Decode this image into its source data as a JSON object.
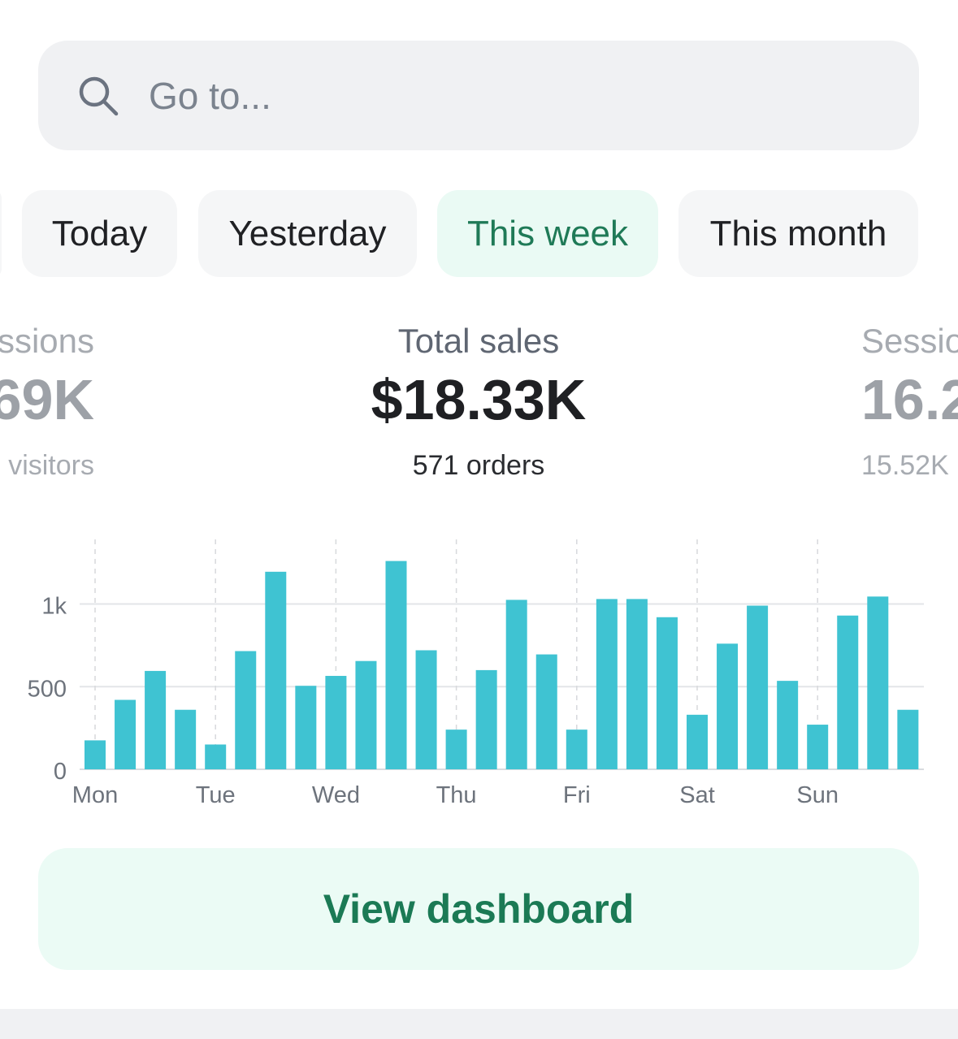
{
  "search": {
    "placeholder": "Go to...",
    "icon": "search-icon"
  },
  "range_tabs": [
    {
      "label": "Today",
      "active": false
    },
    {
      "label": "Yesterday",
      "active": false
    },
    {
      "label": "This week",
      "active": true
    },
    {
      "label": "This month",
      "active": false
    }
  ],
  "metrics": {
    "left": {
      "label": "ssions",
      "value": "69K",
      "sub": "visitors"
    },
    "center": {
      "label": "Total sales",
      "value": "$18.33K",
      "sub": "571 orders"
    },
    "right": {
      "label": "Sessio",
      "value": "16.2",
      "sub": "15.52K"
    }
  },
  "colors": {
    "bar": "#3fc3d2",
    "accent_green": "#1f7a57",
    "active_chip_bg": "#eafaf4"
  },
  "chart_data": {
    "type": "bar",
    "x_labels": [
      "Mon",
      "Tue",
      "Wed",
      "Thu",
      "Fri",
      "Sat",
      "Sun"
    ],
    "y_ticks": [
      0,
      500,
      "1k"
    ],
    "ylim": [
      0,
      1400
    ],
    "grid": true,
    "values": [
      175,
      420,
      595,
      360,
      150,
      715,
      1195,
      505,
      565,
      655,
      1260,
      720,
      240,
      600,
      1025,
      695,
      240,
      1030,
      1030,
      920,
      330,
      760,
      990,
      535,
      270,
      930,
      1045,
      360
    ]
  },
  "dashboard_button": {
    "label": "View dashboard"
  }
}
